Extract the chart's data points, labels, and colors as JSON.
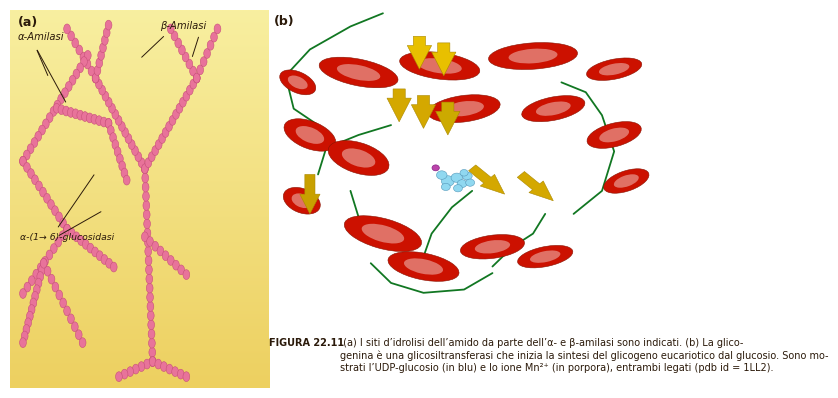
{
  "panel_a_label": "(a)",
  "panel_b_label": "(b)",
  "bg_color_left": "#F5E37A",
  "bead_color": "#E8739A",
  "bead_edge_color": "#C8507A",
  "label_alpha_amilasi": "α-Amilasi",
  "label_beta_amilasi": "β-Amilasi",
  "label_glucosidasi": "α-(1→ 6)-glucosidasi",
  "caption_bold": "FIGURA 22.11",
  "caption_text": " (a) I siti d’idrolisi dell’amido da parte dell’α- e β-amilasi sono indicati. (b) La glico-\ngenina è una glicosiltransferasi che inizia la sintesi del glicogeno eucariotico dal glucosio. Sono mo-\nstrati l’UDP-glucosio (in blu) e lo ione Mn²⁺ (in porpora), entrambi legati (pdb id = 1LL2).",
  "text_color": "#2B1A0A",
  "label_fontsize": 7.2,
  "caption_fontsize": 7.0
}
